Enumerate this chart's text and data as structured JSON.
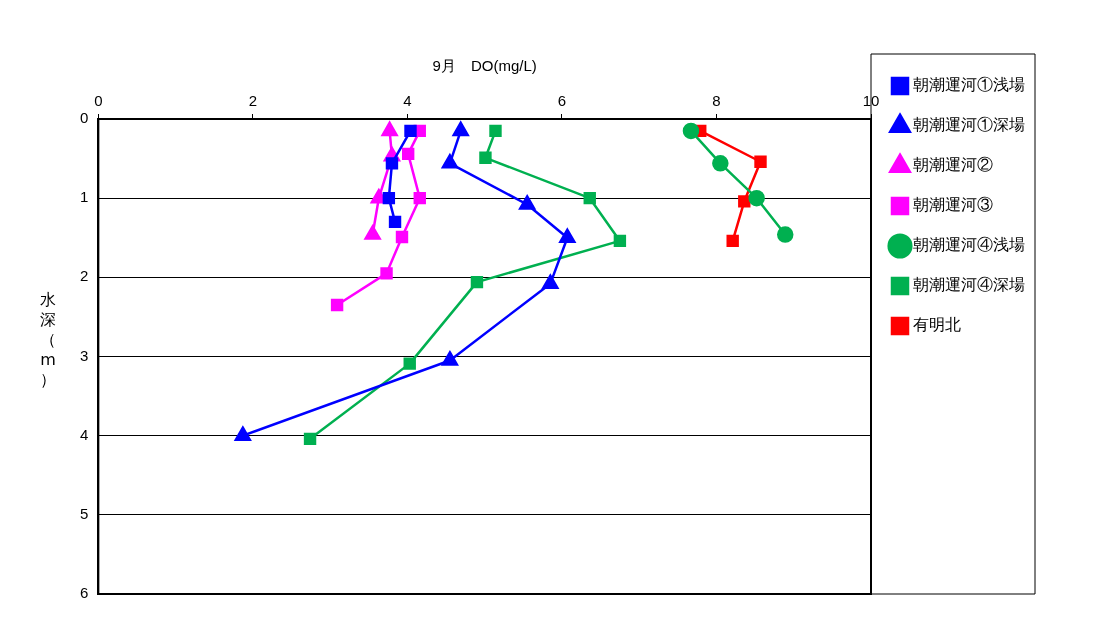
{
  "chart_data": {
    "type": "line",
    "xlabel": "9月　DO(mg/L)",
    "ylabel": "水深（m）",
    "xlim": [
      0,
      10
    ],
    "xticks": [
      0,
      2,
      4,
      6,
      8,
      10
    ],
    "ylim": [
      6,
      0
    ],
    "yticks": [
      0,
      1,
      2,
      3,
      4,
      5,
      6
    ],
    "grid": "y",
    "legend": "right",
    "series": [
      {
        "name": "朝潮運河①浅場",
        "color": "#0000ff",
        "marker": "square",
        "x": [
          4.04,
          3.8,
          3.76,
          3.84
        ],
        "values": [
          0.15,
          0.56,
          1.0,
          1.3
        ]
      },
      {
        "name": "朝潮運河①深場",
        "color": "#0000ff",
        "marker": "triangle",
        "x": [
          4.69,
          4.55,
          5.55,
          6.07,
          5.85,
          4.55,
          1.87
        ],
        "values": [
          0.15,
          0.56,
          1.08,
          1.5,
          2.08,
          3.05,
          4.0
        ]
      },
      {
        "name": "朝潮運河②",
        "color": "#ff00ff",
        "marker": "triangle",
        "x": [
          3.77,
          3.8,
          3.63,
          3.55
        ],
        "values": [
          0.15,
          0.47,
          1.0,
          1.46
        ]
      },
      {
        "name": "朝潮運河③",
        "color": "#ff00ff",
        "marker": "square",
        "x": [
          4.16,
          4.01,
          4.16,
          3.93,
          3.73,
          3.09
        ],
        "values": [
          0.15,
          0.44,
          1.0,
          1.49,
          1.95,
          2.35
        ]
      },
      {
        "name": "朝潮運河④浅場",
        "color": "#00b050",
        "marker": "circle",
        "x": [
          7.67,
          8.05,
          8.52,
          8.89
        ],
        "values": [
          0.15,
          0.56,
          1.0,
          1.46
        ]
      },
      {
        "name": "朝潮運河④深場",
        "color": "#00b050",
        "marker": "square",
        "x": [
          5.14,
          5.01,
          6.36,
          6.75,
          4.9,
          4.03,
          2.74
        ],
        "values": [
          0.15,
          0.49,
          1.0,
          1.54,
          2.06,
          3.09,
          4.04
        ]
      },
      {
        "name": "有明北",
        "color": "#ff0000",
        "marker": "square",
        "x": [
          7.79,
          8.57,
          8.36,
          8.21
        ],
        "values": [
          0.15,
          0.54,
          1.04,
          1.54
        ]
      }
    ]
  }
}
